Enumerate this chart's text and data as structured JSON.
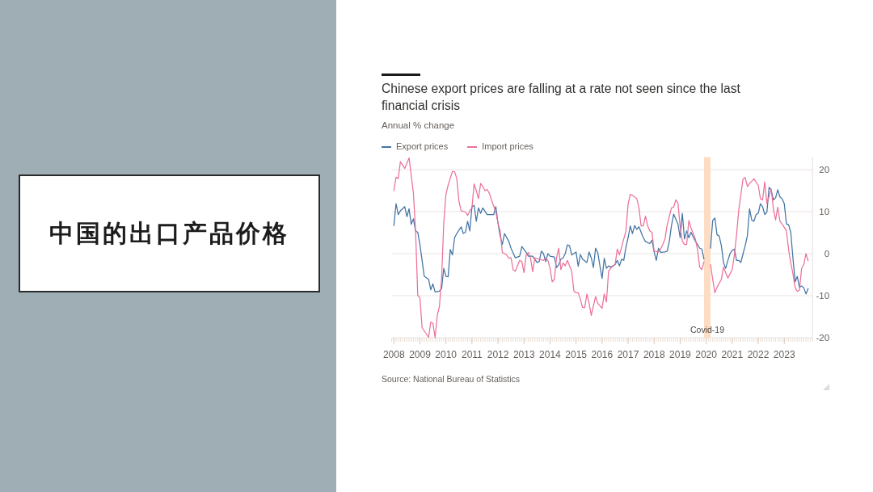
{
  "chart_data": [
    {
      "type": "other",
      "title": "中国的出口产品价格"
    },
    {
      "type": "line",
      "title": "Chinese export prices are falling at a rate not seen since the last financial crisis",
      "subtitle": "Annual % change",
      "xlim": [
        "2007-12",
        "2024-02"
      ],
      "xticks": [
        "2008",
        "2009",
        "2010",
        "2011",
        "2012",
        "2013",
        "2014",
        "2015",
        "2016",
        "2017",
        "2018",
        "2019",
        "2020",
        "2021",
        "2022",
        "2023"
      ],
      "ylim": [
        -20,
        23
      ],
      "yticks": [
        -20,
        -10,
        0,
        10,
        20
      ],
      "grid": "y",
      "legend": "top left",
      "line_style": "solid",
      "bands": [
        {
          "axis": "x",
          "from": "2019-12",
          "to": "2020-03",
          "label": "Covid-19",
          "color": "#fcdcc2"
        }
      ],
      "annotations": [
        "Source: National Bureau of Statistics"
      ],
      "series": [
        {
          "name": "Export prices",
          "color": "#4274a6",
          "x": [
            "2008-01",
            "2008-02",
            "2008-03",
            "2008-04",
            "2008-06",
            "2008-07",
            "2008-08",
            "2008-09",
            "2008-10",
            "2008-11",
            "2008-12",
            "2009-01",
            "2009-03",
            "2009-05",
            "2009-06",
            "2009-07",
            "2009-08",
            "2009-10",
            "2009-11",
            "2009-12",
            "2010-01",
            "2010-02",
            "2010-03",
            "2010-04",
            "2010-05",
            "2010-06",
            "2010-08",
            "2010-09",
            "2010-10",
            "2010-11",
            "2010-12",
            "2011-01",
            "2011-02",
            "2011-03",
            "2011-04",
            "2011-05",
            "2011-06",
            "2011-08",
            "2011-11",
            "2011-12",
            "2012-01",
            "2012-02",
            "2012-03",
            "2012-04",
            "2012-06",
            "2012-07",
            "2012-09",
            "2012-11",
            "2012-12",
            "2013-02",
            "2013-03",
            "2013-05",
            "2013-07",
            "2013-08",
            "2013-09",
            "2013-10",
            "2013-11",
            "2013-12",
            "2014-01",
            "2014-03",
            "2014-04",
            "2014-05",
            "2014-06",
            "2014-07",
            "2014-08",
            "2014-09",
            "2014-10",
            "2014-11",
            "2015-01",
            "2015-02",
            "2015-03",
            "2015-04",
            "2015-06",
            "2015-07",
            "2015-08",
            "2015-09",
            "2015-10",
            "2015-11",
            "2015-12",
            "2016-01",
            "2016-02",
            "2016-03",
            "2016-04",
            "2016-05",
            "2016-07",
            "2016-08",
            "2016-09",
            "2016-10",
            "2016-11",
            "2016-12",
            "2017-01",
            "2017-02",
            "2017-03",
            "2017-04",
            "2017-05",
            "2017-06",
            "2017-08",
            "2017-09",
            "2017-11",
            "2017-12",
            "2018-01",
            "2018-02",
            "2018-03",
            "2018-04",
            "2018-06",
            "2018-07",
            "2018-08",
            "2018-09",
            "2018-10",
            "2018-12",
            "2019-01",
            "2019-02",
            "2019-03",
            "2019-04",
            "2019-05",
            "2019-06",
            "2019-07",
            "2019-08",
            "2019-09",
            "2019-10",
            "2019-11",
            "2019-12",
            "2020-01",
            "2020-02",
            "2020-03",
            "2020-04",
            "2020-05",
            "2020-06",
            "2020-07",
            "2020-08",
            "2020-09",
            "2020-10",
            "2020-11",
            "2020-12",
            "2021-01",
            "2021-02",
            "2021-03",
            "2021-04",
            "2021-05",
            "2021-06",
            "2021-07",
            "2021-08",
            "2021-09",
            "2021-10",
            "2021-11",
            "2021-12",
            "2022-01",
            "2022-02",
            "2022-03",
            "2022-04",
            "2022-05",
            "2022-06",
            "2022-07",
            "2022-08",
            "2022-09",
            "2022-10",
            "2022-11",
            "2022-12",
            "2023-01",
            "2023-02",
            "2023-03",
            "2023-04",
            "2023-05",
            "2023-06",
            "2023-07",
            "2023-08",
            "2023-09",
            "2023-10",
            "2023-11",
            "2023-12"
          ],
          "values": [
            6.7,
            11.9,
            9.3,
            10.2,
            11.2,
            8.8,
            10.7,
            7.0,
            8.3,
            5.4,
            5.1,
            2.2,
            -5.4,
            -6.1,
            -8.6,
            -7.2,
            -9.1,
            -8.9,
            -8.3,
            -3.5,
            -5.4,
            -5.5,
            1.0,
            -0.3,
            3.8,
            4.8,
            6.4,
            4.8,
            5.1,
            7.7,
            5.4,
            11.2,
            11.5,
            7.7,
            10.9,
            9.6,
            10.9,
            9.3,
            9.3,
            11.2,
            7.3,
            4.2,
            2.2,
            4.8,
            2.9,
            1.3,
            -1.0,
            -0.6,
            1.7,
            0.3,
            -0.6,
            -0.6,
            -2.1,
            -1.9,
            0.6,
            0.0,
            -1.9,
            0.0,
            -0.6,
            -0.8,
            -3.3,
            -2.6,
            -1.3,
            -1.0,
            0.0,
            2.1,
            1.9,
            -0.3,
            0.4,
            -3.0,
            -0.2,
            -1.3,
            -2.1,
            0.4,
            -1.0,
            -3.3,
            1.3,
            0.3,
            -2.9,
            -5.9,
            -1.1,
            -3.5,
            -2.9,
            -3.2,
            -2.6,
            -1.6,
            -2.9,
            -1.3,
            -1.6,
            1.6,
            3.8,
            6.6,
            4.8,
            6.7,
            5.8,
            6.4,
            3.8,
            2.9,
            2.4,
            3.2,
            0.4,
            -1.6,
            1.3,
            0.3,
            0.4,
            0.6,
            2.9,
            6.7,
            9.4,
            7.0,
            3.8,
            9.6,
            3.5,
            5.4,
            3.8,
            5.1,
            4.0,
            3.0,
            2.2,
            1.3,
            1.1,
            -1.3,
            null,
            null,
            1.3,
            7.9,
            8.5,
            4.5,
            4.2,
            1.9,
            -2.2,
            -3.5,
            -1.6,
            0.0,
            0.8,
            1.1,
            -1.6,
            -1.6,
            -2.1,
            0.0,
            1.9,
            4.3,
            10.7,
            8.0,
            7.7,
            9.3,
            9.6,
            11.9,
            11.2,
            9.3,
            9.9,
            15.8,
            15.1,
            12.8,
            13.3,
            15.2,
            13.5,
            13.1,
            11.9,
            7.1,
            6.9,
            5.1,
            -1.0,
            -6.7,
            -5.4,
            -8.0,
            -7.7,
            -8.1,
            -9.6,
            -8.3
          ]
        },
        {
          "name": "Import prices",
          "color": "#ec7199",
          "x": [
            "2008-01",
            "2008-02",
            "2008-03",
            "2008-04",
            "2008-06",
            "2008-08",
            "2008-10",
            "2008-11",
            "2008-12",
            "2009-01",
            "2009-02",
            "2009-05",
            "2009-06",
            "2009-07",
            "2009-08",
            "2009-09",
            "2009-10",
            "2009-11",
            "2009-12",
            "2010-01",
            "2010-02",
            "2010-04",
            "2010-05",
            "2010-06",
            "2010-07",
            "2010-08",
            "2010-10",
            "2010-11",
            "2010-12",
            "2011-01",
            "2011-02",
            "2011-03",
            "2011-04",
            "2011-05",
            "2011-06",
            "2011-07",
            "2011-08",
            "2011-09",
            "2011-10",
            "2011-12",
            "2012-01",
            "2012-02",
            "2012-03",
            "2012-04",
            "2012-05",
            "2012-06",
            "2012-07",
            "2012-08",
            "2012-09",
            "2012-10",
            "2012-11",
            "2012-12",
            "2013-01",
            "2013-02",
            "2013-03",
            "2013-04",
            "2013-05",
            "2013-06",
            "2013-08",
            "2013-10",
            "2013-11",
            "2013-12",
            "2014-01",
            "2014-02",
            "2014-03",
            "2014-04",
            "2014-05",
            "2014-06",
            "2014-07",
            "2014-08",
            "2014-09",
            "2014-11",
            "2014-12",
            "2015-01",
            "2015-02",
            "2015-03",
            "2015-04",
            "2015-05",
            "2015-06",
            "2015-07",
            "2015-08",
            "2015-09",
            "2015-10",
            "2015-11",
            "2016-01",
            "2016-02",
            "2016-03",
            "2016-04",
            "2016-05",
            "2016-07",
            "2016-08",
            "2016-09",
            "2016-10",
            "2016-12",
            "2017-01",
            "2017-02",
            "2017-03",
            "2017-05",
            "2017-06",
            "2017-07",
            "2017-08",
            "2017-09",
            "2017-10",
            "2017-11",
            "2017-12",
            "2018-01",
            "2018-03",
            "2018-04",
            "2018-05",
            "2018-06",
            "2018-07",
            "2018-09",
            "2018-10",
            "2018-11",
            "2018-12",
            "2019-01",
            "2019-02",
            "2019-03",
            "2019-04",
            "2019-05",
            "2019-06",
            "2019-08",
            "2019-09",
            "2019-10",
            "2019-11",
            "2019-12",
            "2020-01",
            "2020-02",
            "2020-03",
            "2020-04",
            "2020-05",
            "2020-06",
            "2020-08",
            "2020-09",
            "2020-10",
            "2020-11",
            "2020-12",
            "2021-01",
            "2021-02",
            "2021-03",
            "2021-04",
            "2021-06",
            "2021-07",
            "2021-08",
            "2021-09",
            "2021-11",
            "2022-01",
            "2022-02",
            "2022-03",
            "2022-04",
            "2022-05",
            "2022-07",
            "2022-08",
            "2022-09",
            "2022-10",
            "2022-11",
            "2022-12",
            "2023-02",
            "2023-03",
            "2023-04",
            "2023-05",
            "2023-06",
            "2023-07",
            "2023-08",
            "2023-09",
            "2023-10",
            "2023-11",
            "2023-12"
          ],
          "values": [
            15.0,
            18.2,
            17.9,
            21.9,
            20.3,
            22.8,
            14.4,
            5.4,
            -9.9,
            -10.5,
            -17.6,
            -19.9,
            -16.3,
            -16.6,
            -20.0,
            -14.7,
            -12.5,
            -5.9,
            7.3,
            14.1,
            16.3,
            19.6,
            19.5,
            17.9,
            12.5,
            10.2,
            9.9,
            9.1,
            10.2,
            10.9,
            16.6,
            15.0,
            13.1,
            16.7,
            16.0,
            15.0,
            15.3,
            14.4,
            12.8,
            9.9,
            7.3,
            5.4,
            0.3,
            0.0,
            -0.3,
            -1.1,
            -1.0,
            -3.8,
            -4.2,
            -2.9,
            -1.6,
            -1.9,
            -4.5,
            -0.3,
            0.3,
            -1.0,
            -4.3,
            -1.0,
            -1.3,
            -1.6,
            -1.0,
            -1.6,
            -3.5,
            -6.7,
            -6.1,
            -1.0,
            1.3,
            -3.8,
            -2.2,
            -2.9,
            -1.6,
            -4.2,
            -8.9,
            -9.3,
            -9.3,
            -10.9,
            -12.8,
            -12.8,
            -9.6,
            -11.7,
            -14.7,
            -12.5,
            -10.2,
            -11.8,
            -13.0,
            -9.6,
            -11.5,
            -4.2,
            -3.4,
            -2.6,
            1.1,
            -0.3,
            1.6,
            5.4,
            11.8,
            14.1,
            13.9,
            13.1,
            10.9,
            6.6,
            6.6,
            8.9,
            6.7,
            5.4,
            5.1,
            0.6,
            0.4,
            1.1,
            2.2,
            3.5,
            6.8,
            10.9,
            11.1,
            12.8,
            12.0,
            6.4,
            3.0,
            2.2,
            2.2,
            7.9,
            6.1,
            3.5,
            1.0,
            -3.2,
            -3.8,
            -1.9,
            null,
            null,
            -2.6,
            -6.1,
            -9.3,
            -8.0,
            -6.1,
            -3.2,
            -4.5,
            -5.8,
            -4.8,
            -3.8,
            -0.3,
            4.5,
            10.3,
            17.8,
            18.1,
            16.0,
            16.7,
            17.8,
            16.3,
            13.1,
            12.8,
            17.1,
            11.9,
            15.4,
            10.6,
            8.0,
            11.1,
            7.7,
            7.1,
            5.4,
            1.0,
            -2.2,
            -4.8,
            -8.0,
            -9.0,
            -8.7,
            -3.5,
            -2.6,
            0.0,
            -1.7
          ]
        }
      ]
    }
  ]
}
